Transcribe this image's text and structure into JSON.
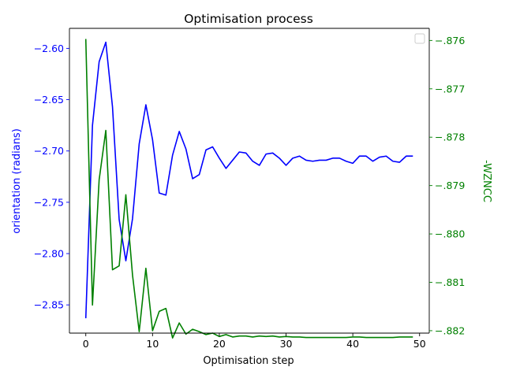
{
  "chart_data": {
    "type": "line",
    "title": "Optimisation process",
    "xlabel": "Optimisation step",
    "ylabel_left": "orientation (radians)",
    "ylabel_right": "-WZNCC",
    "xlim": [
      -2.45,
      51.45
    ],
    "ylim_left": [
      -2.8775,
      -2.5805
    ],
    "ylim_right": [
      -0.88205,
      -0.87575
    ],
    "x_ticks": [
      0,
      10,
      20,
      30,
      40,
      50
    ],
    "y_left_ticks": [
      -2.6,
      -2.65,
      -2.7,
      -2.75,
      -2.8,
      -2.85
    ],
    "y_left_tick_labels": [
      "−2.60",
      "−2.65",
      "−2.70",
      "−2.75",
      "−2.80",
      "−2.85"
    ],
    "y_right_ticks": [
      -0.876,
      -0.877,
      -0.878,
      -0.879,
      -0.88,
      -0.881,
      -0.882
    ],
    "y_right_tick_labels": [
      "−.876",
      "−.877",
      "−.878",
      "−.879",
      "−.880",
      "−.881",
      "−.882"
    ],
    "legend": {
      "position": "top-right",
      "entries": []
    },
    "grid": false,
    "colors": {
      "left_axis": "#0000ff",
      "right_axis": "#008000"
    },
    "x": [
      0,
      1,
      2,
      3,
      4,
      5,
      6,
      7,
      8,
      9,
      10,
      11,
      12,
      13,
      14,
      15,
      16,
      17,
      18,
      19,
      20,
      21,
      22,
      23,
      24,
      25,
      26,
      27,
      28,
      29,
      30,
      31,
      32,
      33,
      34,
      35,
      36,
      37,
      38,
      39,
      40,
      41,
      42,
      43,
      44,
      45,
      46,
      47,
      48,
      49
    ],
    "series": [
      {
        "axis": "left",
        "color": "#0000ff",
        "values": [
          -2.863,
          -2.675,
          -2.613,
          -2.594,
          -2.657,
          -2.767,
          -2.807,
          -2.766,
          -2.693,
          -2.655,
          -2.689,
          -2.741,
          -2.743,
          -2.704,
          -2.681,
          -2.698,
          -2.727,
          -2.723,
          -2.699,
          -2.696,
          -2.707,
          -2.717,
          -2.709,
          -2.701,
          -2.702,
          -2.71,
          -2.714,
          -2.703,
          -2.702,
          -2.707,
          -2.714,
          -2.707,
          -2.705,
          -2.709,
          -2.71,
          -2.709,
          -2.709,
          -2.707,
          -2.707,
          -2.71,
          -2.712,
          -2.705,
          -2.705,
          -2.71,
          -2.706,
          -2.705,
          -2.71,
          -2.711,
          -2.705,
          -2.705
        ]
      },
      {
        "axis": "right",
        "color": "#008000",
        "values": [
          -0.87597,
          -0.88147,
          -0.87888,
          -0.87786,
          -0.88074,
          -0.88066,
          -0.87919,
          -0.88085,
          -0.88202,
          -0.88071,
          -0.882,
          -0.8816,
          -0.88154,
          -0.88215,
          -0.88184,
          -0.88207,
          -0.88197,
          -0.88202,
          -0.88208,
          -0.88205,
          -0.88212,
          -0.88208,
          -0.88213,
          -0.88211,
          -0.88211,
          -0.88213,
          -0.88211,
          -0.88212,
          -0.88211,
          -0.88213,
          -0.88212,
          -0.88213,
          -0.88213,
          -0.88214,
          -0.88214,
          -0.88214,
          -0.88214,
          -0.88214,
          -0.88214,
          -0.88214,
          -0.88213,
          -0.88213,
          -0.88214,
          -0.88214,
          -0.88214,
          -0.88214,
          -0.88214,
          -0.88213,
          -0.88213,
          -0.88213
        ]
      }
    ]
  }
}
